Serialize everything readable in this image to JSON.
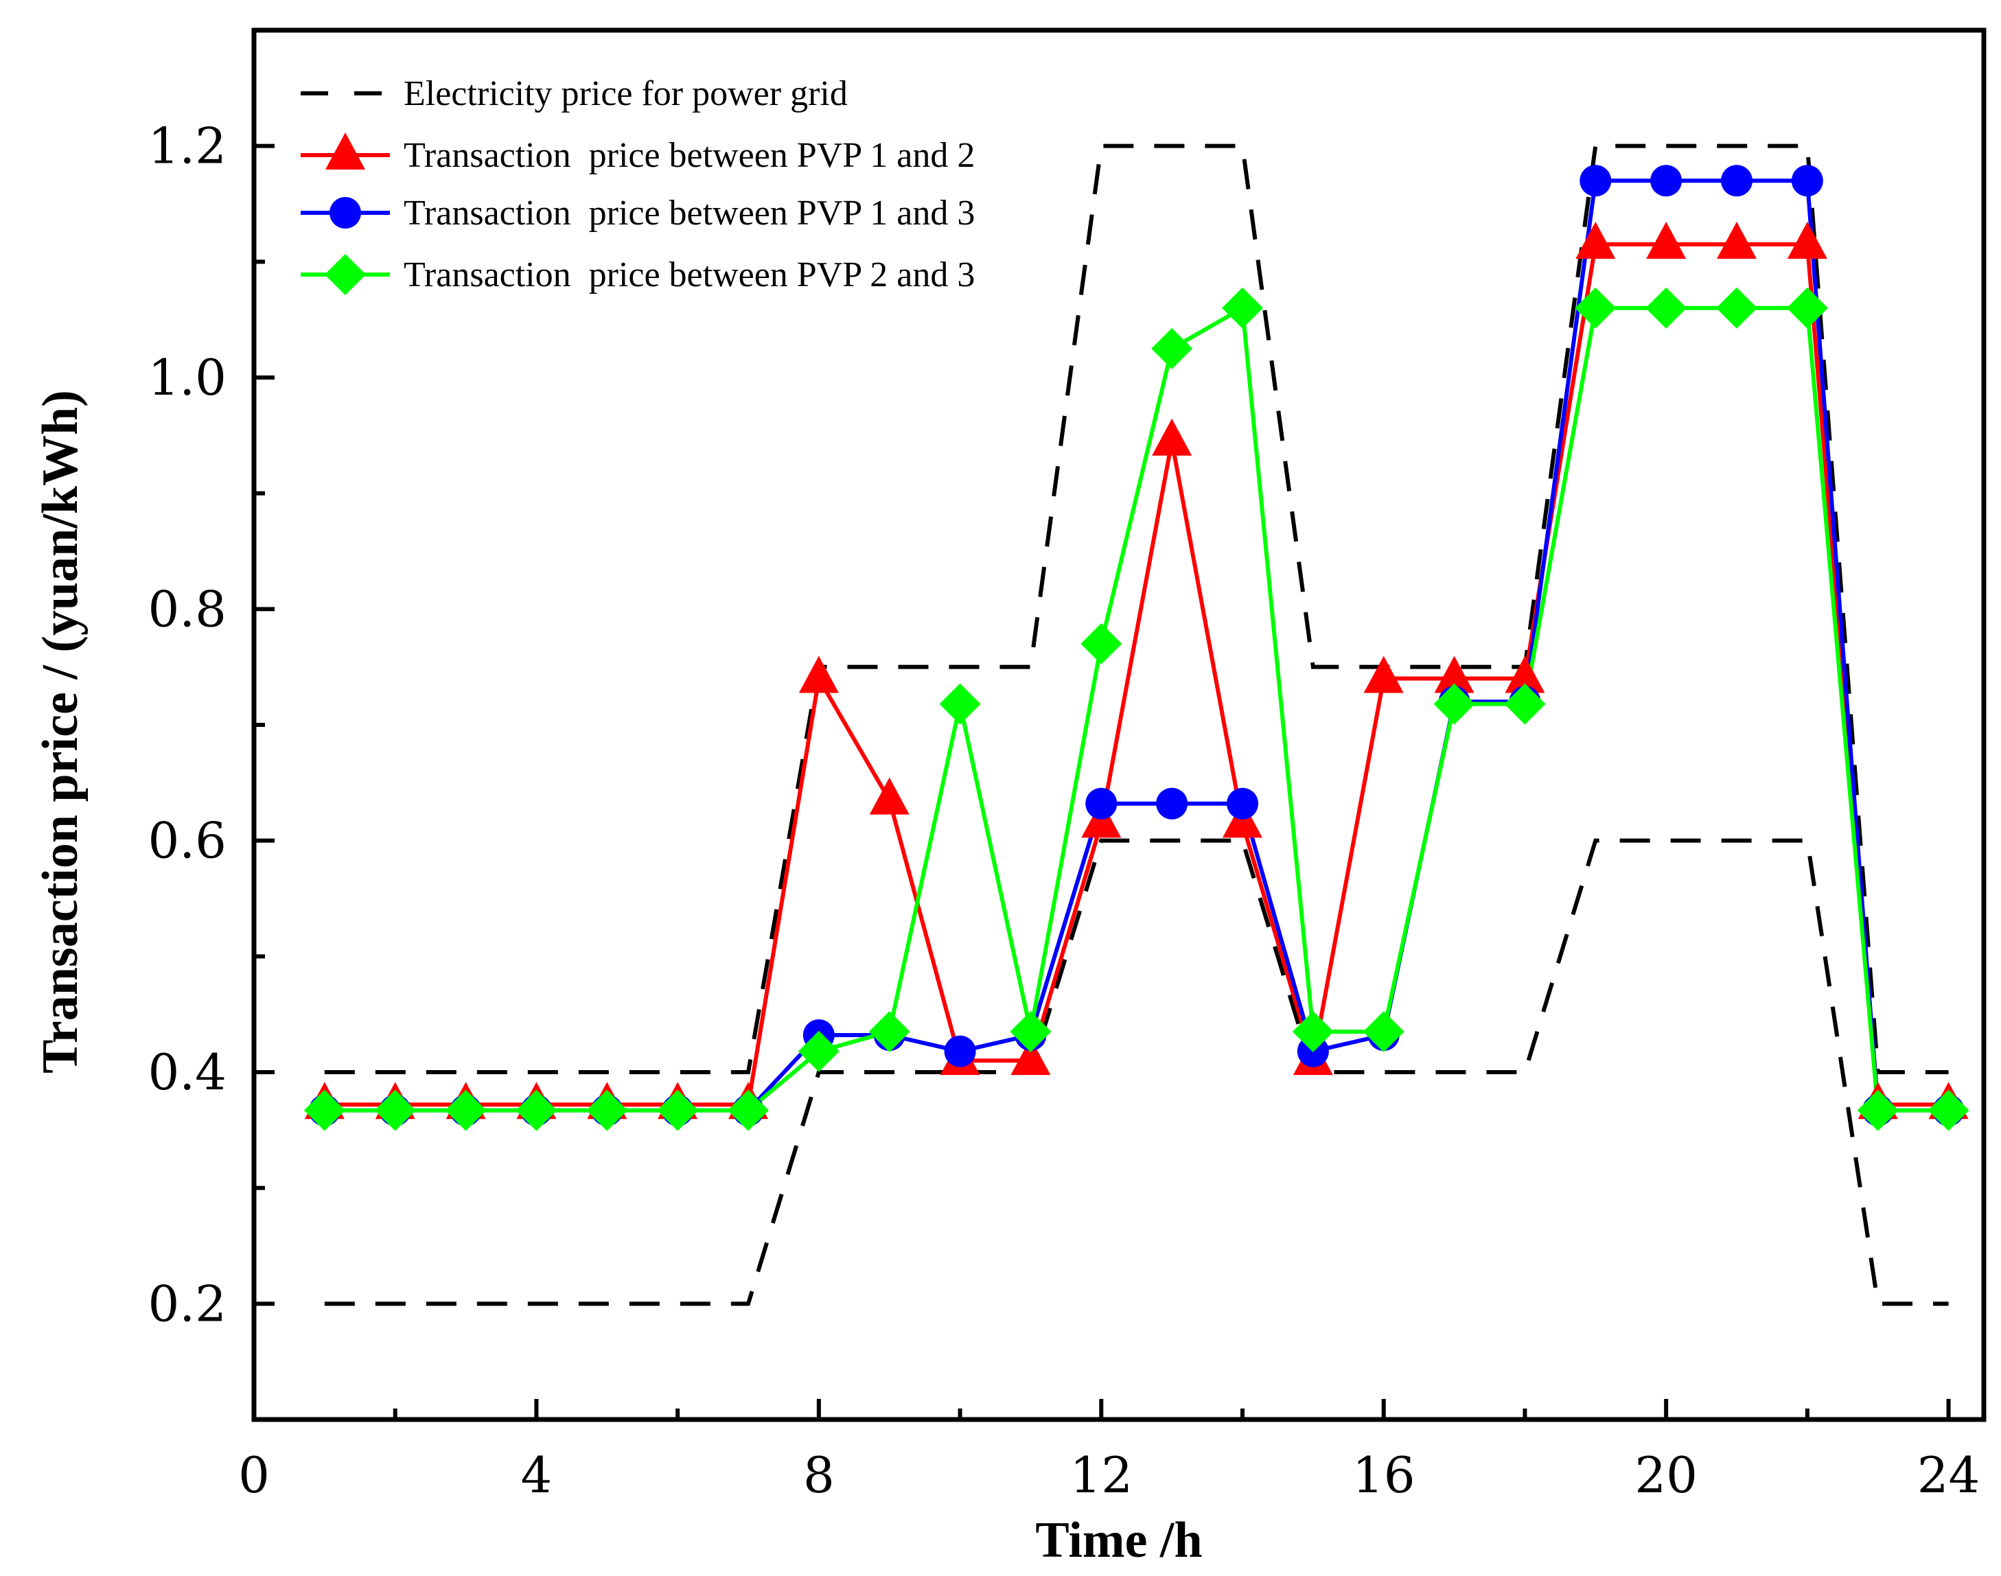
{
  "chart_data": {
    "type": "line",
    "title": "",
    "xlabel": "Time /h",
    "ylabel": "Transaction price / (yuan/kWh)",
    "xlim": [
      0,
      24.5
    ],
    "ylim": [
      0.1,
      1.3
    ],
    "x_ticks": [
      0,
      4,
      8,
      12,
      16,
      20,
      24
    ],
    "x_tick_labels": [
      "0",
      "4",
      "8",
      "12",
      "16",
      "20",
      "24"
    ],
    "y_ticks": [
      0.2,
      0.4,
      0.6,
      0.8,
      1.0,
      1.2
    ],
    "y_tick_labels": [
      "0.2",
      "0.4",
      "0.6",
      "0.8",
      "1.0",
      "1.2"
    ],
    "legend_position": "top-left",
    "grid": false,
    "grid_price": [
      {
        "name": "Electricity price for power grid (upper)",
        "x": [
          1,
          7,
          8,
          11,
          12,
          14,
          15,
          18,
          19,
          22,
          23,
          24
        ],
        "values": [
          0.4,
          0.4,
          0.75,
          0.75,
          1.2,
          1.2,
          0.75,
          0.75,
          1.2,
          1.2,
          0.4,
          0.4
        ]
      },
      {
        "name": "Electricity price for power grid (lower)",
        "x": [
          1,
          7,
          8,
          11,
          12,
          14,
          15,
          18,
          19,
          22,
          23,
          24
        ],
        "values": [
          0.2,
          0.2,
          0.4,
          0.4,
          0.6,
          0.6,
          0.4,
          0.4,
          0.6,
          0.6,
          0.2,
          0.2
        ]
      }
    ],
    "x": [
      1,
      2,
      3,
      4,
      5,
      6,
      7,
      8,
      9,
      10,
      11,
      12,
      13,
      14,
      15,
      16,
      17,
      18,
      19,
      20,
      21,
      22,
      23,
      24
    ],
    "series": [
      {
        "name": "Transaction  price between PVP 1 and 2",
        "color": "#ff0000",
        "marker": "triangle",
        "values": [
          0.372,
          0.372,
          0.372,
          0.372,
          0.372,
          0.372,
          0.372,
          0.74,
          0.635,
          0.41,
          0.41,
          0.615,
          0.945,
          0.615,
          0.41,
          0.74,
          0.74,
          0.74,
          1.115,
          1.115,
          1.115,
          1.115,
          0.372,
          0.372
        ]
      },
      {
        "name": "Transaction  price between PVP 1 and 3",
        "color": "#0000ff",
        "marker": "circle",
        "values": [
          0.367,
          0.367,
          0.367,
          0.367,
          0.367,
          0.367,
          0.367,
          0.432,
          0.432,
          0.418,
          0.432,
          0.632,
          0.632,
          0.632,
          0.418,
          0.432,
          0.72,
          0.72,
          1.17,
          1.17,
          1.17,
          1.17,
          0.367,
          0.367
        ]
      },
      {
        "name": "Transaction  price between PVP 2 and 3",
        "color": "#00ff00",
        "marker": "diamond",
        "values": [
          0.367,
          0.367,
          0.367,
          0.367,
          0.367,
          0.367,
          0.367,
          0.418,
          0.435,
          0.718,
          0.435,
          0.77,
          1.025,
          1.06,
          0.435,
          0.435,
          0.718,
          0.718,
          1.06,
          1.06,
          1.06,
          1.06,
          0.367,
          0.367
        ]
      }
    ],
    "legend": [
      {
        "label": "Electricity price for power grid",
        "style": "dashed",
        "color": "#000000",
        "marker": "none"
      },
      {
        "label": "Transaction  price between PVP 1 and 2",
        "style": "solid",
        "color": "#ff0000",
        "marker": "triangle"
      },
      {
        "label": "Transaction  price between PVP 1 and 3",
        "style": "solid",
        "color": "#0000ff",
        "marker": "circle"
      },
      {
        "label": "Transaction  price between PVP 2 and 3",
        "style": "solid",
        "color": "#00ff00",
        "marker": "diamond"
      }
    ]
  }
}
